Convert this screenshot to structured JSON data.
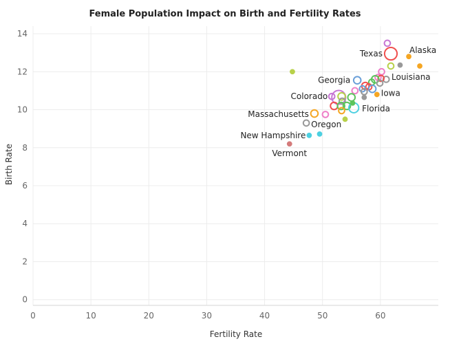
{
  "chart_data": {
    "type": "scatter",
    "title": "Female Population Impact on Birth and Fertility Rates",
    "xlabel": "Fertility Rate",
    "ylabel": "Birth Rate",
    "xlim": [
      0,
      70
    ],
    "ylim": [
      -0.3,
      14.4
    ],
    "xticks": [
      0,
      10,
      20,
      30,
      40,
      50,
      60
    ],
    "yticks": [
      0,
      2,
      4,
      6,
      8,
      10,
      12,
      14
    ],
    "grid": true,
    "legend": "none",
    "points": [
      {
        "x": 61.8,
        "y": 12.95,
        "size": 8,
        "color": "#f0504e",
        "label": "Texas"
      },
      {
        "x": 64.9,
        "y": 12.8,
        "size": 2,
        "color": "#f5a623"
      },
      {
        "x": 66.8,
        "y": 12.3,
        "size": 2,
        "color": "#f5a623"
      },
      {
        "x": 61.2,
        "y": 13.5,
        "size": 3,
        "color": "#c777d4"
      },
      {
        "x": 63.4,
        "y": 12.35,
        "size": 2,
        "color": "#999999"
      },
      {
        "x": 61.8,
        "y": 12.3,
        "size": 3,
        "color": "#b8d14a"
      },
      {
        "x": 44.8,
        "y": 12.0,
        "size": 2,
        "color": "#b8d14a",
        "label": "Alaska"
      },
      {
        "x": 60.2,
        "y": 12.0,
        "size": 3,
        "color": "#ee7fc8"
      },
      {
        "x": 61.0,
        "y": 11.6,
        "size": 3,
        "color": "#999999",
        "label": "Louisiana"
      },
      {
        "x": 59.6,
        "y": 11.7,
        "size": 3,
        "color": "#ee7fc8"
      },
      {
        "x": 60.1,
        "y": 11.65,
        "size": 3,
        "color": "#f0504e"
      },
      {
        "x": 59.1,
        "y": 11.6,
        "size": 4,
        "color": "#5cc45c"
      },
      {
        "x": 58.5,
        "y": 11.45,
        "size": 3,
        "color": "#5cc45c"
      },
      {
        "x": 59.9,
        "y": 11.4,
        "size": 3,
        "color": "#999999"
      },
      {
        "x": 56.0,
        "y": 11.55,
        "size": 4,
        "color": "#6a9fd8",
        "label": "Georgia"
      },
      {
        "x": 57.4,
        "y": 11.25,
        "size": 4,
        "color": "#f0504e"
      },
      {
        "x": 58.0,
        "y": 11.2,
        "size": 3,
        "color": "#f0504e"
      },
      {
        "x": 56.9,
        "y": 11.1,
        "size": 3,
        "color": "#6a9fd8"
      },
      {
        "x": 58.6,
        "y": 11.1,
        "size": 4,
        "color": "#6a9fd8"
      },
      {
        "x": 55.6,
        "y": 11.0,
        "size": 3,
        "color": "#ee7fc8"
      },
      {
        "x": 57.2,
        "y": 10.95,
        "size": 3,
        "color": "#999999"
      },
      {
        "x": 59.4,
        "y": 10.8,
        "size": 2,
        "color": "#f5a623",
        "label": "Iowa"
      },
      {
        "x": 57.2,
        "y": 10.65,
        "size": 2,
        "color": "#999999"
      },
      {
        "x": 51.6,
        "y": 10.7,
        "size": 3,
        "color": "#c777d4",
        "label": "Colorado"
      },
      {
        "x": 52.8,
        "y": 10.65,
        "size": 9,
        "color": "#c777d4"
      },
      {
        "x": 53.3,
        "y": 10.7,
        "size": 4,
        "color": "#b8d14a"
      },
      {
        "x": 55.0,
        "y": 10.65,
        "size": 4,
        "color": "#5cc45c"
      },
      {
        "x": 53.4,
        "y": 10.45,
        "size": 3,
        "color": "#999999"
      },
      {
        "x": 52.0,
        "y": 10.2,
        "size": 4,
        "color": "#f0504e"
      },
      {
        "x": 53.2,
        "y": 10.2,
        "size": 4,
        "color": "#5cc45c"
      },
      {
        "x": 54.2,
        "y": 10.2,
        "size": 4,
        "color": "#5cc45c"
      },
      {
        "x": 53.3,
        "y": 9.95,
        "size": 3,
        "color": "#f5a623"
      },
      {
        "x": 55.4,
        "y": 10.1,
        "size": 6,
        "color": "#4dd0e1",
        "label": "Florida"
      },
      {
        "x": 55.2,
        "y": 10.35,
        "size": 2,
        "color": "#5cc45c"
      },
      {
        "x": 48.6,
        "y": 9.8,
        "size": 4,
        "color": "#f5a623",
        "label": "Massachusetts"
      },
      {
        "x": 50.5,
        "y": 9.75,
        "size": 3,
        "color": "#ee7fc8"
      },
      {
        "x": 53.9,
        "y": 9.5,
        "size": 2,
        "color": "#b8d14a"
      },
      {
        "x": 47.2,
        "y": 9.3,
        "size": 3,
        "color": "#999999",
        "label": "Oregon"
      },
      {
        "x": 47.7,
        "y": 8.65,
        "size": 2,
        "color": "#4dd0e1",
        "label": "New Hampshire"
      },
      {
        "x": 49.5,
        "y": 8.72,
        "size": 2,
        "color": "#4dd0e1"
      },
      {
        "x": 44.3,
        "y": 8.2,
        "size": 2,
        "color": "#d47b7b",
        "label": "Vermont"
      }
    ]
  }
}
